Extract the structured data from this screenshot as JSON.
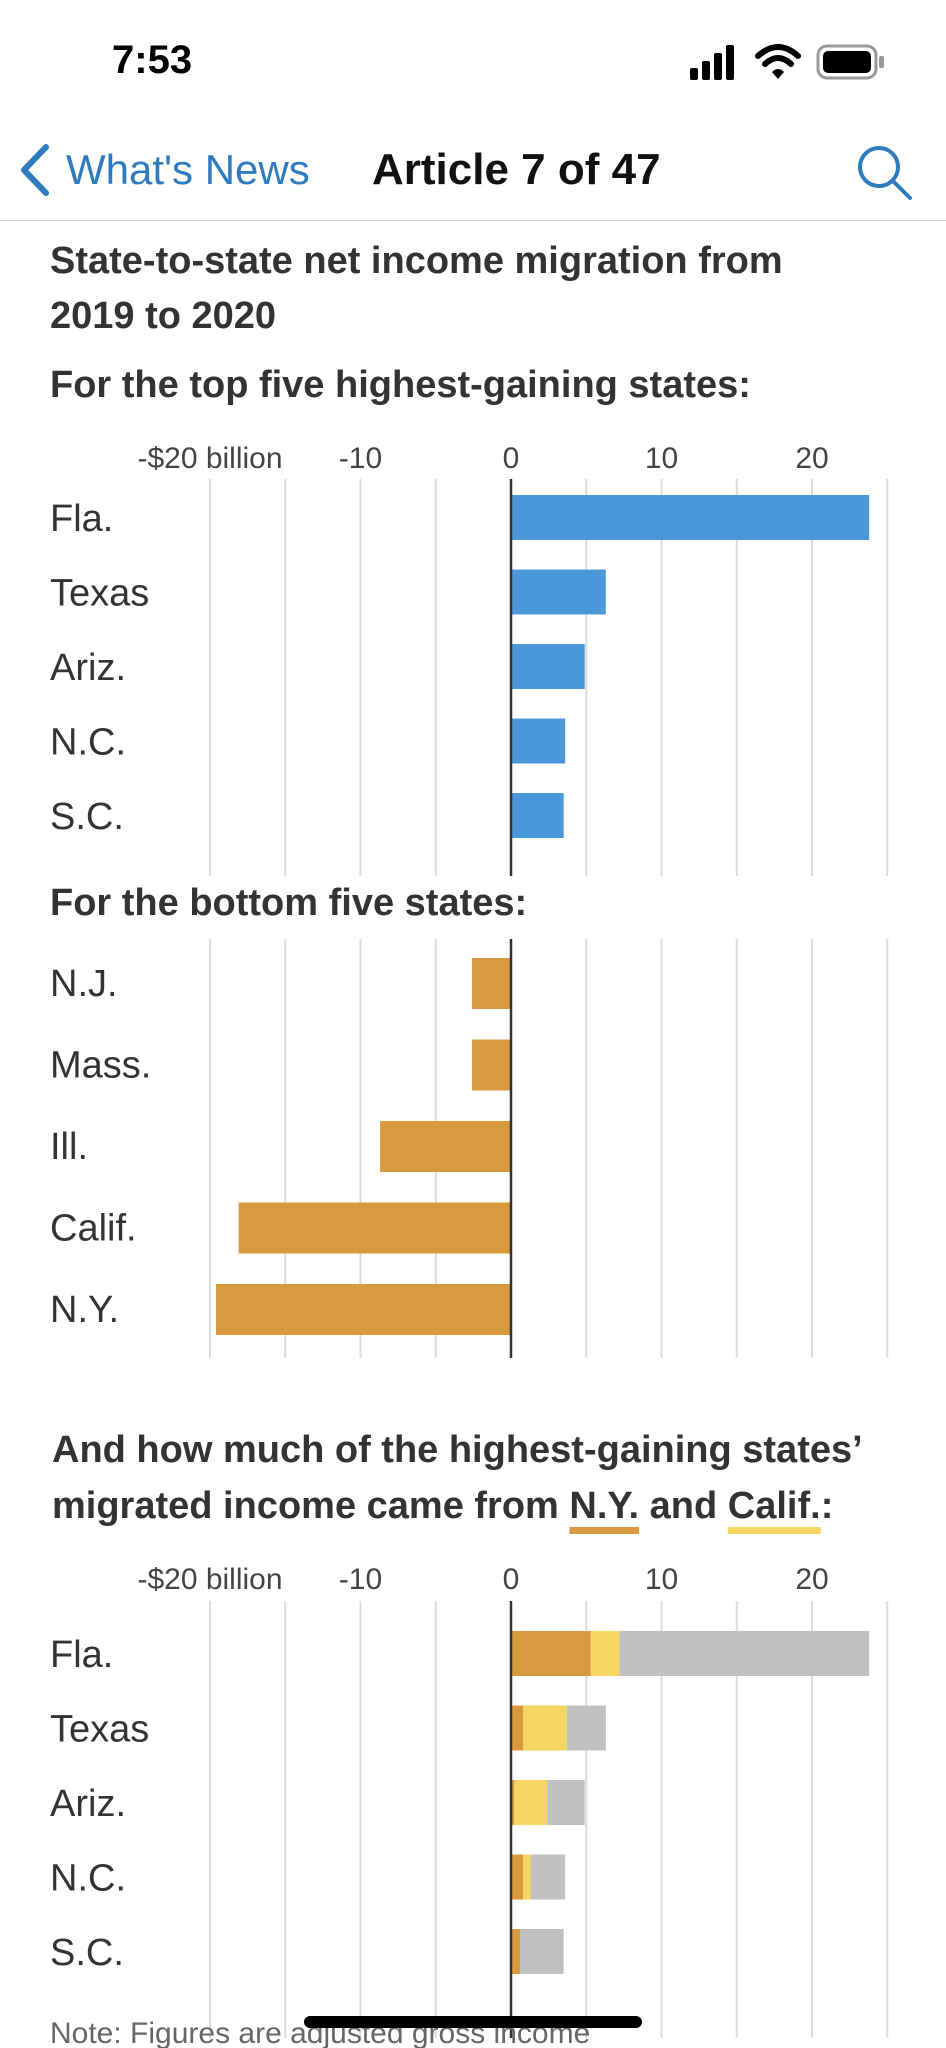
{
  "status_bar": {
    "time": "7:53",
    "icons": [
      "signal-icon",
      "wifi-icon",
      "battery-icon"
    ]
  },
  "nav": {
    "back_label": "What's News",
    "title": "Article 7 of 47",
    "search_icon": "search-icon"
  },
  "colors": {
    "blue": "#4a98d9",
    "orange": "#d99a3f",
    "yellow": "#f5d660",
    "gray": "#c0c0c0",
    "accent": "#2f7bbf"
  },
  "chart_data": [
    {
      "type": "bar",
      "orientation": "horizontal",
      "title": "State-to-state net income migration from 2019 to 2020",
      "subtitle": "For the top five highest-gaining states:",
      "unit": "billion",
      "xlim": [
        -20,
        25
      ],
      "ticks": [
        -20,
        -10,
        0,
        10,
        20
      ],
      "tick_labels": [
        "-$20 billion",
        "-10",
        "0",
        "10",
        "20"
      ],
      "grid": true,
      "categories": [
        "Fla.",
        "Texas",
        "Ariz.",
        "N.C.",
        "S.C."
      ],
      "values": [
        23.8,
        6.3,
        4.9,
        3.6,
        3.5
      ],
      "color": "#4a98d9"
    },
    {
      "type": "bar",
      "orientation": "horizontal",
      "subtitle": "For the bottom five states:",
      "xlim": [
        -20,
        25
      ],
      "ticks": [
        -20,
        -10,
        0,
        10,
        20
      ],
      "grid": true,
      "categories": [
        "N.J.",
        "Mass.",
        "Ill.",
        "Calif.",
        "N.Y."
      ],
      "values": [
        -2.6,
        -2.6,
        -8.7,
        -18.1,
        -19.6
      ],
      "color": "#d99a3f"
    },
    {
      "type": "bar",
      "orientation": "horizontal",
      "stacked": true,
      "title_parts": [
        "And how much of the highest-gaining states’",
        "migrated income came from ",
        "N.Y.",
        " and ",
        "Calif.",
        ":"
      ],
      "xlim": [
        -20,
        25
      ],
      "ticks": [
        -20,
        -10,
        0,
        10,
        20
      ],
      "tick_labels": [
        "-$20 billion",
        "-10",
        "0",
        "10",
        "20"
      ],
      "grid": true,
      "categories": [
        "Fla.",
        "Texas",
        "Ariz.",
        "N.C.",
        "S.C."
      ],
      "series": [
        {
          "name": "N.Y.",
          "color": "#d99a3f",
          "values": [
            5.3,
            0.8,
            0.2,
            0.8,
            0.6
          ]
        },
        {
          "name": "Calif.",
          "color": "#f5d660",
          "values": [
            1.9,
            2.9,
            2.2,
            0.5,
            0.0
          ]
        },
        {
          "color": "#c0c0c0",
          "values": [
            16.6,
            2.6,
            2.5,
            2.3,
            2.9
          ]
        }
      ]
    }
  ],
  "note": "Note: Figures are adjusted gross income"
}
